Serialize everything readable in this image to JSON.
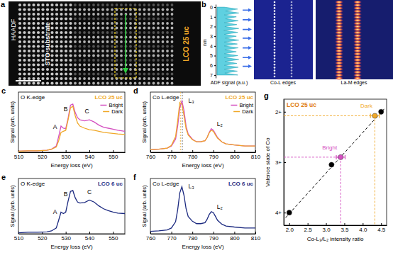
{
  "chart_data": [
    {
      "type": "area",
      "panel_label": "b",
      "orientation": "horizontal",
      "x_label": "nm",
      "y_label": "ADF signal (a.u.)",
      "x": [
        0,
        0.2,
        0.4,
        0.6,
        0.8,
        1,
        1.2,
        1.4,
        1.6,
        1.8,
        2,
        2.2,
        2.4,
        2.6,
        2.8,
        3,
        3.2,
        3.4,
        3.6,
        3.8,
        4,
        4.2,
        4.4,
        4.6,
        4.8,
        5,
        5.2,
        5.4,
        5.6,
        5.8,
        6,
        6.2,
        6.4,
        6.6,
        6.8,
        7
      ],
      "series": [
        {
          "color": "#5fd0e0",
          "values": [
            0.3,
            0.85,
            0.35,
            0.9,
            0.3,
            0.8,
            0.35,
            0.88,
            0.3,
            0.82,
            0.32,
            0.9,
            0.28,
            0.86,
            0.3,
            0.8,
            0.34,
            0.9,
            0.3,
            0.84,
            0.3,
            0.88,
            0.32,
            0.8,
            0.3,
            0.86,
            0.3,
            0.9,
            0.33,
            0.82,
            0.3,
            0.88,
            0.3,
            0.84,
            0.32,
            0.86
          ]
        }
      ],
      "xlim": [
        -0.3,
        7.3
      ],
      "xticks": [
        0,
        1,
        2,
        3,
        4,
        5,
        6,
        7
      ],
      "ylim": [
        0,
        1
      ],
      "tick_labels": "x",
      "arrows": [
        0.3,
        1.3,
        2.3,
        3.2,
        4.2,
        5.2,
        6.1
      ]
    },
    {
      "type": "line",
      "panel_label": "c",
      "title": "LCO 25 uc",
      "subtitle": "O K-edge",
      "x_label": "Energy loss (eV)",
      "y_label": "Signal (arb. units)",
      "x": [
        510,
        514,
        518,
        522,
        524,
        526,
        527,
        528,
        529,
        530,
        531,
        532,
        533,
        534,
        535,
        536,
        538,
        540,
        542,
        544,
        546,
        548,
        550,
        552,
        555
      ],
      "series": [
        {
          "name": "Bright",
          "color": "#d44fc0",
          "values": [
            0.02,
            0.03,
            0.03,
            0.04,
            0.06,
            0.12,
            0.3,
            0.5,
            0.46,
            0.45,
            0.65,
            0.9,
            0.92,
            0.76,
            0.66,
            0.62,
            0.6,
            0.62,
            0.58,
            0.52,
            0.48,
            0.46,
            0.44,
            0.42,
            0.4
          ]
        },
        {
          "name": "Dark",
          "color": "#f0a828",
          "values": [
            0.02,
            0.03,
            0.03,
            0.04,
            0.06,
            0.1,
            0.22,
            0.38,
            0.4,
            0.42,
            0.62,
            0.85,
            0.88,
            0.7,
            0.56,
            0.5,
            0.46,
            0.43,
            0.42,
            0.4,
            0.38,
            0.37,
            0.36,
            0.35,
            0.34
          ]
        }
      ],
      "xlim": [
        510,
        555
      ],
      "xticks": [
        510,
        520,
        530,
        540,
        550
      ],
      "ylim": [
        0,
        1.15
      ],
      "tick_labels": "x",
      "legend": "upper right",
      "annotations": [
        {
          "text": "A",
          "x": 525.5,
          "y": 0.45
        },
        {
          "text": "B",
          "x": 530,
          "y": 0.78
        },
        {
          "text": "C",
          "x": 539,
          "y": 0.75
        }
      ]
    },
    {
      "type": "line",
      "panel_label": "d",
      "title": "LCO 25 uc",
      "subtitle": "Co L-edge",
      "x_label": "Energy loss (eV)",
      "y_label": "Signal (arb. units)",
      "x": [
        760,
        764,
        768,
        770,
        772,
        773,
        774,
        775,
        776,
        777,
        778,
        780,
        782,
        784,
        786,
        787,
        788,
        789,
        790,
        791,
        792,
        794,
        796,
        800,
        805,
        810
      ],
      "series": [
        {
          "name": "Bright",
          "color": "#d44fc0",
          "values": [
            0.05,
            0.06,
            0.08,
            0.12,
            0.25,
            0.5,
            0.85,
            0.98,
            0.8,
            0.5,
            0.35,
            0.25,
            0.2,
            0.2,
            0.22,
            0.28,
            0.38,
            0.45,
            0.42,
            0.35,
            0.28,
            0.2,
            0.16,
            0.14,
            0.12,
            0.12
          ]
        },
        {
          "name": "Dark",
          "color": "#f0a828",
          "values": [
            0.05,
            0.06,
            0.08,
            0.13,
            0.3,
            0.6,
            0.95,
            0.92,
            0.7,
            0.45,
            0.33,
            0.24,
            0.2,
            0.2,
            0.22,
            0.28,
            0.37,
            0.42,
            0.4,
            0.33,
            0.27,
            0.2,
            0.16,
            0.14,
            0.12,
            0.12
          ]
        }
      ],
      "xlim": [
        760,
        810
      ],
      "xticks": [
        760,
        770,
        780,
        790,
        800,
        810
      ],
      "ylim": [
        0,
        1.15
      ],
      "tick_labels": "x",
      "legend": "upper right",
      "vlines": [
        {
          "x": 774.3,
          "color": "#f0a828"
        },
        {
          "x": 775.2,
          "color": "#444444"
        }
      ],
      "annotations": [
        {
          "text": "L₃",
          "x": 779.5,
          "y": 0.95
        },
        {
          "text": "L₂",
          "x": 793,
          "y": 0.5
        }
      ]
    },
    {
      "type": "line",
      "panel_label": "e",
      "title": "LCO 6 uc",
      "subtitle": "O K-edge",
      "x_label": "Energy loss (eV)",
      "y_label": "Signal (arb. units)",
      "x": [
        510,
        514,
        518,
        522,
        524,
        526,
        527,
        528,
        529,
        530,
        531,
        532,
        533,
        534,
        535,
        536,
        538,
        540,
        542,
        544,
        546,
        548,
        550,
        552,
        555
      ],
      "series": [
        {
          "color": "#1c2a80",
          "values": [
            0.02,
            0.03,
            0.03,
            0.04,
            0.06,
            0.12,
            0.28,
            0.45,
            0.42,
            0.45,
            0.68,
            0.88,
            0.9,
            0.75,
            0.66,
            0.64,
            0.65,
            0.7,
            0.66,
            0.58,
            0.52,
            0.48,
            0.45,
            0.43,
            0.42
          ]
        }
      ],
      "xlim": [
        510,
        555
      ],
      "xticks": [
        510,
        520,
        530,
        540,
        550
      ],
      "ylim": [
        0,
        1.15
      ],
      "tick_labels": "x",
      "annotations": [
        {
          "text": "A",
          "x": 525.5,
          "y": 0.42
        },
        {
          "text": "B",
          "x": 530,
          "y": 0.78
        },
        {
          "text": "C",
          "x": 540,
          "y": 0.82
        }
      ]
    },
    {
      "type": "line",
      "panel_label": "f",
      "title": "LCO 6 uc",
      "subtitle": "Co L-edge",
      "x_label": "Energy loss (eV)",
      "y_label": "Signal (arb. units)",
      "x": [
        760,
        764,
        768,
        770,
        772,
        773,
        774,
        775,
        776,
        777,
        778,
        780,
        782,
        784,
        786,
        787,
        788,
        789,
        790,
        791,
        792,
        794,
        796,
        800,
        805,
        810
      ],
      "series": [
        {
          "color": "#1c2a80",
          "values": [
            0.05,
            0.06,
            0.08,
            0.12,
            0.25,
            0.5,
            0.85,
            0.98,
            0.8,
            0.52,
            0.36,
            0.26,
            0.21,
            0.21,
            0.23,
            0.3,
            0.4,
            0.46,
            0.44,
            0.36,
            0.28,
            0.2,
            0.16,
            0.14,
            0.12,
            0.12
          ]
        }
      ],
      "xlim": [
        760,
        810
      ],
      "xticks": [
        760,
        770,
        780,
        790,
        800,
        810
      ],
      "ylim": [
        0,
        1.15
      ],
      "tick_labels": "x",
      "annotations": [
        {
          "text": "L₃",
          "x": 779.5,
          "y": 0.95
        },
        {
          "text": "L₂",
          "x": 793,
          "y": 0.52
        }
      ]
    },
    {
      "type": "scatter",
      "panel_label": "g",
      "title": "LCO 25 uc",
      "x_label": "Co-L₃/L₂ intensity ratio",
      "y_label": "Valence state of Co",
      "series": [
        {
          "type": "line",
          "line_style": "dashed",
          "color": "#000000",
          "x": [
            1.9,
            4.6
          ],
          "values": [
            4.1,
            1.93
          ]
        },
        {
          "type": "scatter",
          "marker": "circle",
          "color": "#000000",
          "x": [
            2.0,
            3.15,
            4.5
          ],
          "values": [
            4,
            3.05,
            2
          ]
        },
        {
          "type": "scatter",
          "marker": "circle",
          "color": "#d44fc0",
          "x": [
            3.4
          ],
          "values": [
            2.9
          ],
          "x_errors": [
            0.12
          ]
        },
        {
          "type": "scatter",
          "marker": "circle",
          "color": "#f0a828",
          "x": [
            4.33
          ],
          "values": [
            2.08
          ],
          "x_errors": [
            0.12
          ]
        }
      ],
      "xlim": [
        1.85,
        4.65
      ],
      "xticks": [
        {
          "value": 2,
          "label": "2.0"
        },
        {
          "value": 2.5,
          "label": "2.5"
        },
        {
          "value": 3,
          "label": "3.0"
        },
        {
          "value": 3.5,
          "label": "3.5"
        },
        {
          "value": 4,
          "label": "4.0"
        },
        {
          "value": 4.5,
          "label": "4.5"
        }
      ],
      "ylim": [
        4.25,
        1.75
      ],
      "yticks": [
        {
          "value": 2,
          "label": "2+"
        },
        {
          "value": 3,
          "label": "3+"
        },
        {
          "value": 4,
          "label": "4+"
        }
      ],
      "annotations": [
        {
          "text": "Bright",
          "x": 3.1,
          "y": 2.75,
          "color": "#d44fc0"
        },
        {
          "text": "Dark",
          "x": 4.1,
          "y": 1.92,
          "color": "#f0a828"
        }
      ]
    }
  ],
  "images": {
    "haadf": {
      "panel_label": "a",
      "label": "HAADF",
      "substrate": "STO substrate",
      "film": "LCO 25 uc"
    },
    "co_l_map": {
      "label": "Co-L edges"
    },
    "la_m_map": {
      "label": "La-M edges"
    }
  }
}
